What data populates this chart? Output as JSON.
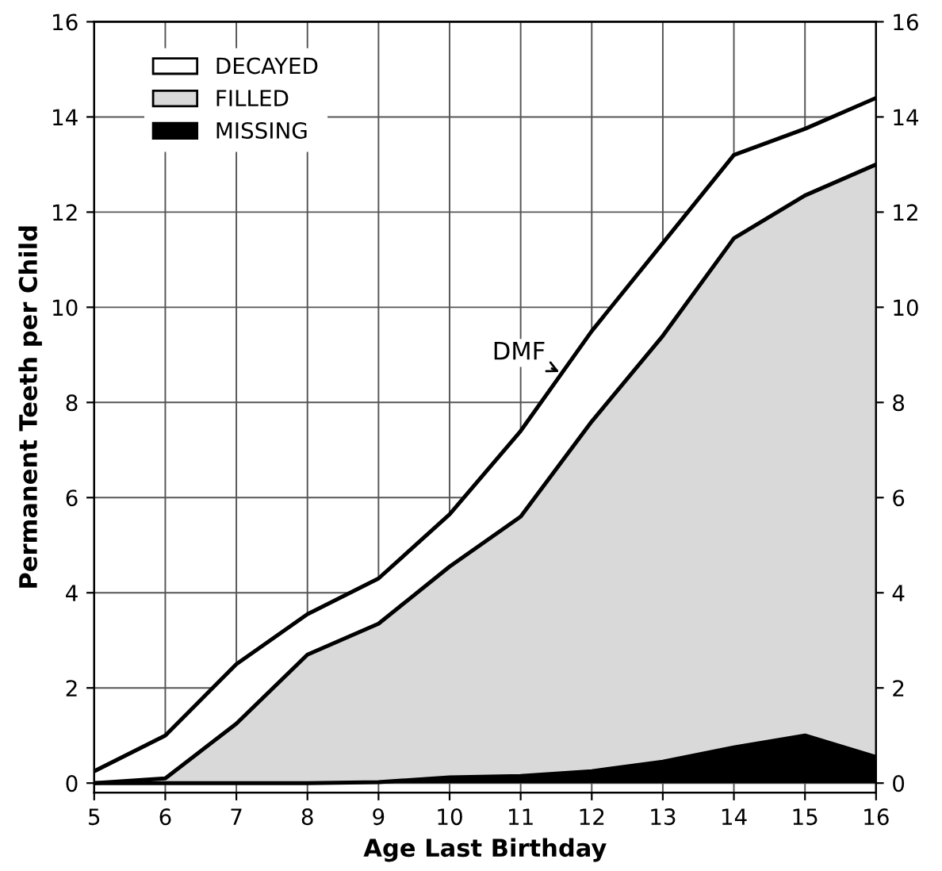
{
  "chart_data": {
    "type": "area",
    "stacked": true,
    "xlabel": "Age Last Birthday",
    "ylabel": "Permanent Teeth per Child",
    "x": [
      5,
      6,
      7,
      8,
      9,
      10,
      11,
      12,
      13,
      14,
      15,
      16
    ],
    "series": [
      {
        "name": "MISSING",
        "color": "#000000",
        "values": [
          0,
          0,
          0,
          0,
          0.02,
          0.12,
          0.15,
          0.25,
          0.45,
          0.75,
          1.0,
          0.55
        ]
      },
      {
        "name": "FILLED",
        "color": "#d9d9d9",
        "values": [
          0,
          0.1,
          1.25,
          2.7,
          3.33,
          4.43,
          5.45,
          7.35,
          8.95,
          10.7,
          11.35,
          12.45
        ]
      },
      {
        "name": "DECAYED",
        "color": "#ffffff",
        "values": [
          0.25,
          0.9,
          1.25,
          0.85,
          0.95,
          1.1,
          1.8,
          1.9,
          1.95,
          1.75,
          1.4,
          1.4
        ]
      }
    ],
    "annotations": [
      {
        "text": "DMF",
        "x": 11.6,
        "y": 8.6
      }
    ],
    "xlim": [
      5,
      16
    ],
    "xticks": [
      5,
      6,
      7,
      8,
      9,
      10,
      11,
      12,
      13,
      14,
      15,
      16
    ],
    "ylim": [
      -0.2,
      16
    ],
    "yticks": [
      0,
      2,
      4,
      6,
      8,
      10,
      12,
      14,
      16
    ],
    "y2lim": [
      -0.2,
      16
    ],
    "y2ticks": [
      0,
      2,
      4,
      6,
      8,
      10,
      12,
      14,
      16
    ],
    "grid": true,
    "legend": "top left"
  }
}
